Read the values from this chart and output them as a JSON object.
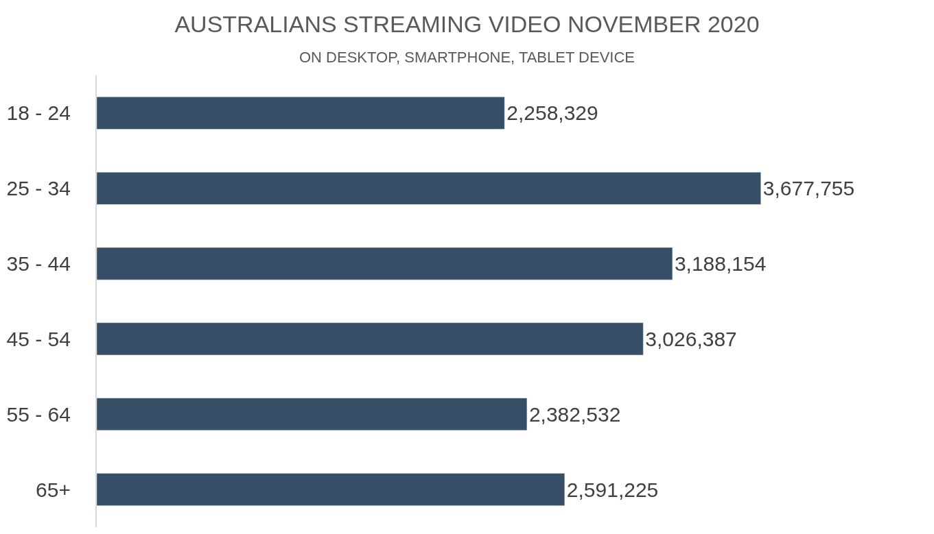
{
  "chart_data": {
    "type": "bar",
    "orientation": "horizontal",
    "title": "AUSTRALIANS STREAMING VIDEO NOVEMBER 2020",
    "subtitle": "ON DESKTOP, SMARTPHONE, TABLET DEVICE",
    "categories": [
      "18 - 24",
      "25 - 34",
      "35 - 44",
      "45 - 54",
      "55 - 64",
      "65+"
    ],
    "values": [
      2258329,
      3677755,
      3188154,
      3026387,
      2382532,
      2591225
    ],
    "value_labels": [
      "2,258,329",
      "3,677,755",
      "3,188,154",
      "3,026,387",
      "2,382,532",
      "2,591,225"
    ],
    "color": "#374f66",
    "tick_labels": "y"
  }
}
